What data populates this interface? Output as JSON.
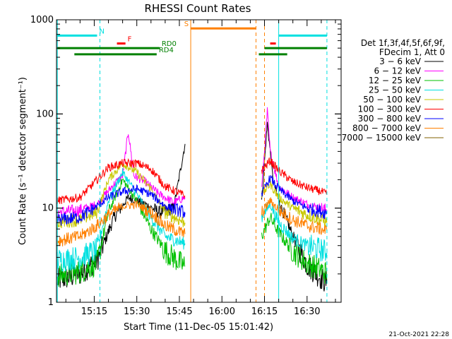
{
  "chart_data": {
    "type": "line",
    "title": "RHESSI Count Rates",
    "xlabel": "Start Time (11-Dec-05 15:01:42)",
    "ylabel": "Count Rate (s⁻¹ detector segment⁻¹)",
    "yscale": "log",
    "ylim": [
      1,
      1000
    ],
    "xlim": [
      "15:01:42",
      "16:42:00"
    ],
    "x_ticks": [
      "15:15",
      "15:30",
      "15:45",
      "16:00",
      "16:15",
      "16:30"
    ],
    "y_ticks": [
      "1",
      "10",
      "100",
      "1000"
    ],
    "grid": false,
    "legend_position": "right",
    "legend_header": [
      "Det 1f,3f,4f,5f,6f,9f,",
      "FDecim 1, Att 0"
    ],
    "series": [
      {
        "name": "3 − 6 keV",
        "color": "#000000",
        "segments": [
          {
            "x": [
              "15:02",
              "15:10",
              "15:16",
              "15:22",
              "15:27",
              "15:33",
              "15:38",
              "15:43",
              "15:47"
            ],
            "y": [
              1.7,
              2.0,
              2.8,
              8.0,
              13.0,
              11.0,
              9.0,
              10.0,
              48.0
            ]
          },
          {
            "x": [
              "16:14",
              "16:16",
              "16:18",
              "16:20",
              "16:25",
              "16:30",
              "16:35",
              "16:37"
            ],
            "y": [
              12.0,
              80.0,
              20.0,
              12.0,
              5.0,
              2.5,
              1.8,
              1.6
            ]
          }
        ]
      },
      {
        "name": "6 − 12 keV",
        "color": "#ff00ff",
        "segments": [
          {
            "x": [
              "15:02",
              "15:10",
              "15:16",
              "15:22",
              "15:25",
              "15:27",
              "15:29",
              "15:33",
              "15:38",
              "15:43",
              "15:47"
            ],
            "y": [
              9.0,
              9.5,
              11.0,
              18.0,
              22.0,
              65.0,
              22.0,
              19.0,
              14.0,
              11.5,
              13.0
            ]
          },
          {
            "x": [
              "16:14",
              "16:16",
              "16:17",
              "16:20",
              "16:25",
              "16:30",
              "16:35",
              "16:37"
            ],
            "y": [
              16.0,
              108.0,
              40.0,
              17.0,
              13.0,
              11.0,
              10.0,
              9.5
            ]
          }
        ]
      },
      {
        "name": "12 − 25 keV",
        "color": "#00c000",
        "segments": [
          {
            "x": [
              "15:02",
              "15:10",
              "15:16",
              "15:20",
              "15:25",
              "15:30",
              "15:35",
              "15:40",
              "15:47"
            ],
            "y": [
              1.9,
              2.1,
              2.6,
              9.0,
              20.0,
              12.0,
              6.0,
              3.5,
              2.4
            ]
          },
          {
            "x": [
              "16:14",
              "16:17",
              "16:20",
              "16:25",
              "16:30",
              "16:35",
              "16:37"
            ],
            "y": [
              5.0,
              8.0,
              5.5,
              3.5,
              2.6,
              2.2,
              2.0
            ]
          }
        ]
      },
      {
        "name": "25 − 50 keV",
        "color": "#00e0e0",
        "segments": [
          {
            "x": [
              "15:02",
              "15:10",
              "15:16",
              "15:20",
              "15:25",
              "15:30",
              "15:35",
              "15:40",
              "15:47"
            ],
            "y": [
              2.8,
              3.0,
              3.6,
              12.0,
              24.0,
              14.0,
              8.0,
              5.0,
              4.2
            ]
          },
          {
            "x": [
              "16:14",
              "16:17",
              "16:20",
              "16:25",
              "16:30",
              "16:35",
              "16:37"
            ],
            "y": [
              8.0,
              11.0,
              7.0,
              4.8,
              4.0,
              3.6,
              3.4
            ]
          }
        ]
      },
      {
        "name": "50 − 100 keV",
        "color": "#c8c800",
        "segments": [
          {
            "x": [
              "15:02",
              "15:10",
              "15:16",
              "15:20",
              "15:25",
              "15:30",
              "15:35",
              "15:40",
              "15:47"
            ],
            "y": [
              7.0,
              7.5,
              9.0,
              20.0,
              30.0,
              24.0,
              16.0,
              9.0,
              7.0
            ]
          },
          {
            "x": [
              "16:14",
              "16:17",
              "16:20",
              "16:25",
              "16:30",
              "16:35",
              "16:37"
            ],
            "y": [
              14.0,
              18.0,
              13.0,
              10.0,
              8.5,
              7.5,
              7.0
            ]
          }
        ]
      },
      {
        "name": "100 − 300 keV",
        "color": "#ff0000",
        "segments": [
          {
            "x": [
              "15:02",
              "15:10",
              "15:16",
              "15:20",
              "15:25",
              "15:30",
              "15:35",
              "15:40",
              "15:47"
            ],
            "y": [
              12.0,
              13.0,
              20.0,
              27.0,
              30.0,
              30.0,
              26.0,
              17.0,
              13.5
            ]
          },
          {
            "x": [
              "16:14",
              "16:17",
              "16:20",
              "16:25",
              "16:30",
              "16:35",
              "16:37"
            ],
            "y": [
              25.0,
              32.0,
              25.0,
              19.0,
              16.5,
              15.0,
              14.0
            ]
          }
        ]
      },
      {
        "name": "300 − 800 keV",
        "color": "#0000ff",
        "segments": [
          {
            "x": [
              "15:02",
              "15:10",
              "15:16",
              "15:20",
              "15:25",
              "15:30",
              "15:35",
              "15:40",
              "15:47"
            ],
            "y": [
              7.5,
              8.0,
              10.5,
              13.0,
              15.0,
              16.0,
              14.0,
              10.5,
              9.0
            ]
          },
          {
            "x": [
              "16:14",
              "16:17",
              "16:20",
              "16:25",
              "16:30",
              "16:35",
              "16:37"
            ],
            "y": [
              14.0,
              21.0,
              16.0,
              12.0,
              10.0,
              9.2,
              8.8
            ]
          }
        ]
      },
      {
        "name": "800 − 7000 keV",
        "color": "#ff8000",
        "segments": [
          {
            "x": [
              "15:02",
              "15:10",
              "15:16",
              "15:20",
              "15:25",
              "15:30",
              "15:35",
              "15:40",
              "15:47"
            ],
            "y": [
              4.5,
              5.0,
              6.5,
              8.5,
              10.5,
              11.0,
              9.0,
              6.5,
              5.3
            ]
          },
          {
            "x": [
              "16:14",
              "16:17",
              "16:20",
              "16:25",
              "16:30",
              "16:35",
              "16:37"
            ],
            "y": [
              9.0,
              12.0,
              9.5,
              7.5,
              6.5,
              6.0,
              5.7
            ]
          }
        ]
      },
      {
        "name": "7000 − 15000 keV",
        "color": "#806000",
        "segments": []
      }
    ],
    "annotations": {
      "cyan_solid_x": [
        "15:02",
        "16:20"
      ],
      "cyan_dashed_x": [
        "15:17",
        "16:37"
      ],
      "orange_solid_x": [
        "15:49"
      ],
      "orange_dashed_x": [
        "16:12",
        "16:15"
      ],
      "bars": [
        {
          "label": "N",
          "color": "#00e0e0",
          "y": 680,
          "x": [
            [
              "15:02",
              "15:16"
            ],
            [
              "16:20",
              "16:37"
            ]
          ]
        },
        {
          "label": "F",
          "color": "#ff0000",
          "y": 560,
          "x": [
            [
              "15:23",
              "15:26"
            ],
            [
              "16:17",
              "16:19"
            ]
          ]
        },
        {
          "label": "RD0",
          "color": "#008000",
          "y": 500,
          "x": [
            [
              "15:02",
              "15:38"
            ],
            [
              "16:15",
              "16:37"
            ]
          ]
        },
        {
          "label": "RD4",
          "color": "#008000",
          "y": 430,
          "x": [
            [
              "15:08",
              "15:37"
            ],
            [
              "16:13",
              "16:23"
            ]
          ]
        },
        {
          "label": "S",
          "color": "#ff8000",
          "y": 810,
          "x": [
            [
              "15:49",
              "16:12"
            ]
          ]
        }
      ]
    }
  },
  "timestamp": "21-Oct-2021 22:28"
}
